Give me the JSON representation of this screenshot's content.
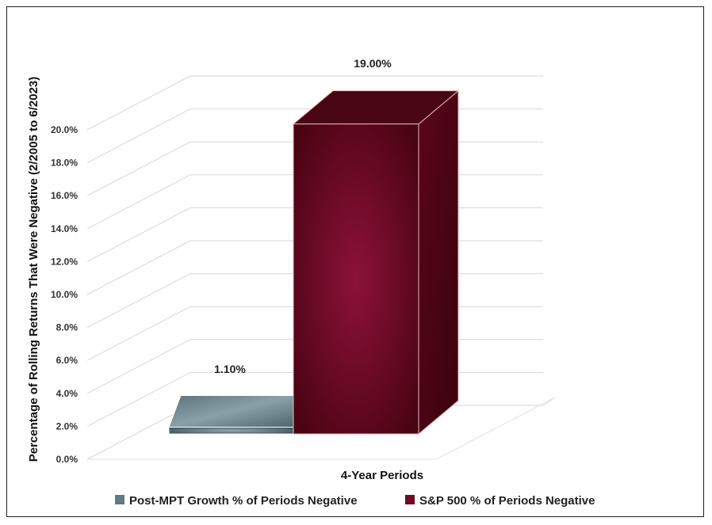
{
  "chart_data": {
    "type": "bar",
    "title": "",
    "ylabel": "Percentage of Rolling Returns That Were Negative (2/2005 to 6/2023)",
    "xlabel": "4-Year Periods",
    "categories": [
      "4-Year Periods"
    ],
    "series": [
      {
        "name": "Post-MPT Growth % of Periods Negative",
        "values": [
          1.1
        ],
        "label": "1.10%",
        "color": "#5f7a84"
      },
      {
        "name": "S&P 500 % of Periods Negative",
        "values": [
          19.0
        ],
        "label": "19.00%",
        "color": "#6e0a24"
      }
    ],
    "yticks": [
      "0.0%",
      "2.0%",
      "4.0%",
      "6.0%",
      "8.0%",
      "10.0%",
      "12.0%",
      "14.0%",
      "16.0%",
      "18.0%",
      "20.0%"
    ],
    "ylim": [
      0,
      20
    ],
    "grid": true,
    "legend_position": "bottom"
  }
}
